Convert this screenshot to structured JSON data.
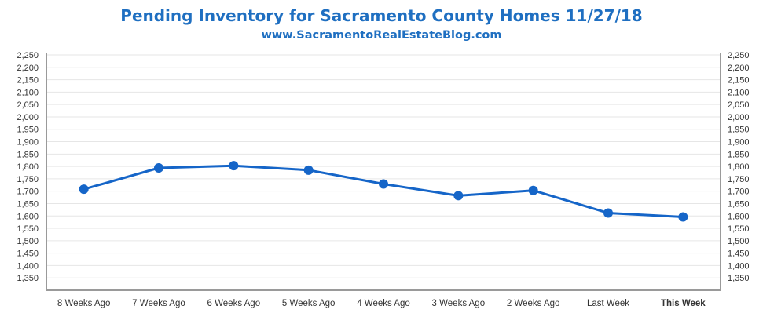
{
  "chart_data": {
    "type": "line",
    "title": "Pending Inventory for Sacramento County Homes 11/27/18",
    "subtitle": "www.SacramentoRealEstateBlog.com",
    "categories": [
      "8 Weeks Ago",
      "7 Weeks Ago",
      "6 Weeks Ago",
      "5 Weeks Ago",
      "4 Weeks Ago",
      "3 Weeks Ago",
      "2 Weeks Ago",
      "Last Week",
      "This Week"
    ],
    "series": [
      {
        "values": [
          1708,
          1794,
          1803,
          1785,
          1729,
          1682,
          1703,
          1612,
          1596
        ]
      }
    ],
    "ylim": [
      1300,
      2250
    ],
    "yticks": [
      1350,
      1400,
      1450,
      1500,
      1550,
      1600,
      1650,
      1700,
      1750,
      1800,
      1850,
      1900,
      1950,
      2000,
      2050,
      2100,
      2150,
      2200,
      2250
    ],
    "ytick_labels": [
      "1,350",
      "1,400",
      "1,450",
      "1,500",
      "1,550",
      "1,600",
      "1,650",
      "1,700",
      "1,750",
      "1,800",
      "1,850",
      "1,900",
      "1,950",
      "2,000",
      "2,050",
      "2,100",
      "2,150",
      "2,200",
      "2,250"
    ],
    "highlight_category": "This Week",
    "grid": true,
    "legend": "none",
    "colors": {
      "line": "#1565c8",
      "title": "#1f6fc1",
      "highlight_label": "#1565c8",
      "grid": "#e6e6e6",
      "axis": "#9a9a9a"
    }
  }
}
